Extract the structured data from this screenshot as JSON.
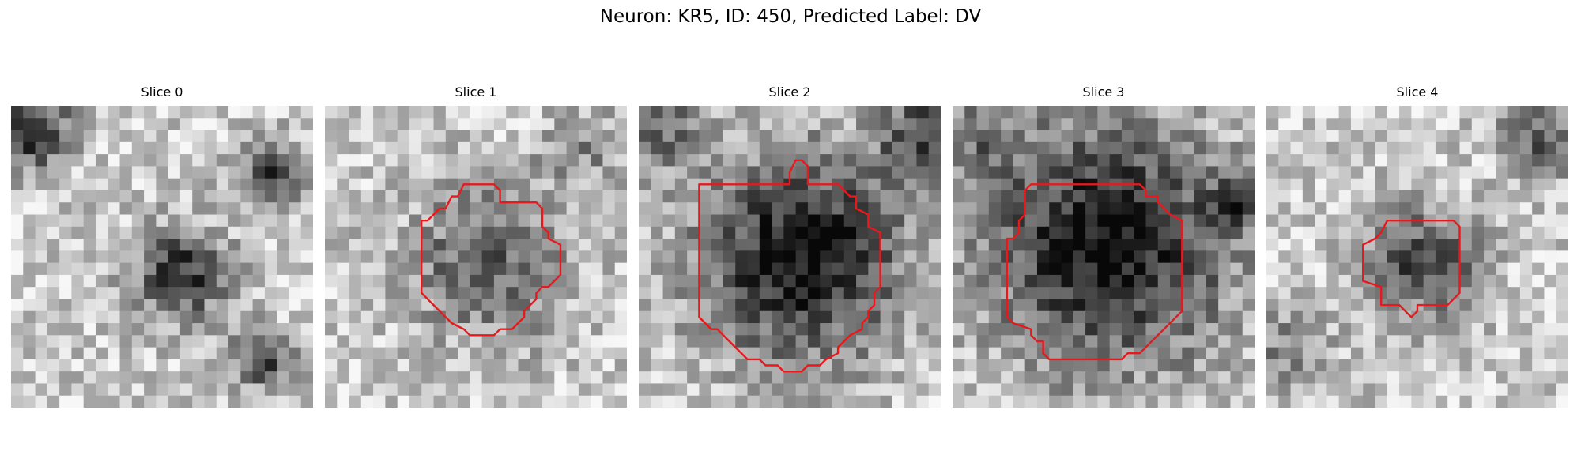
{
  "figure": {
    "title": "Neuron: KR5, ID: 450, Predicted Label: DV"
  },
  "panels": [
    {
      "title": "Slice 0",
      "has_outline": false
    },
    {
      "title": "Slice 1",
      "has_outline": true
    },
    {
      "title": "Slice 2",
      "has_outline": true
    },
    {
      "title": "Slice 3",
      "has_outline": true
    },
    {
      "title": "Slice 4",
      "has_outline": true
    }
  ],
  "colors": {
    "outline": "#e8181c",
    "background": "#ffffff"
  }
}
